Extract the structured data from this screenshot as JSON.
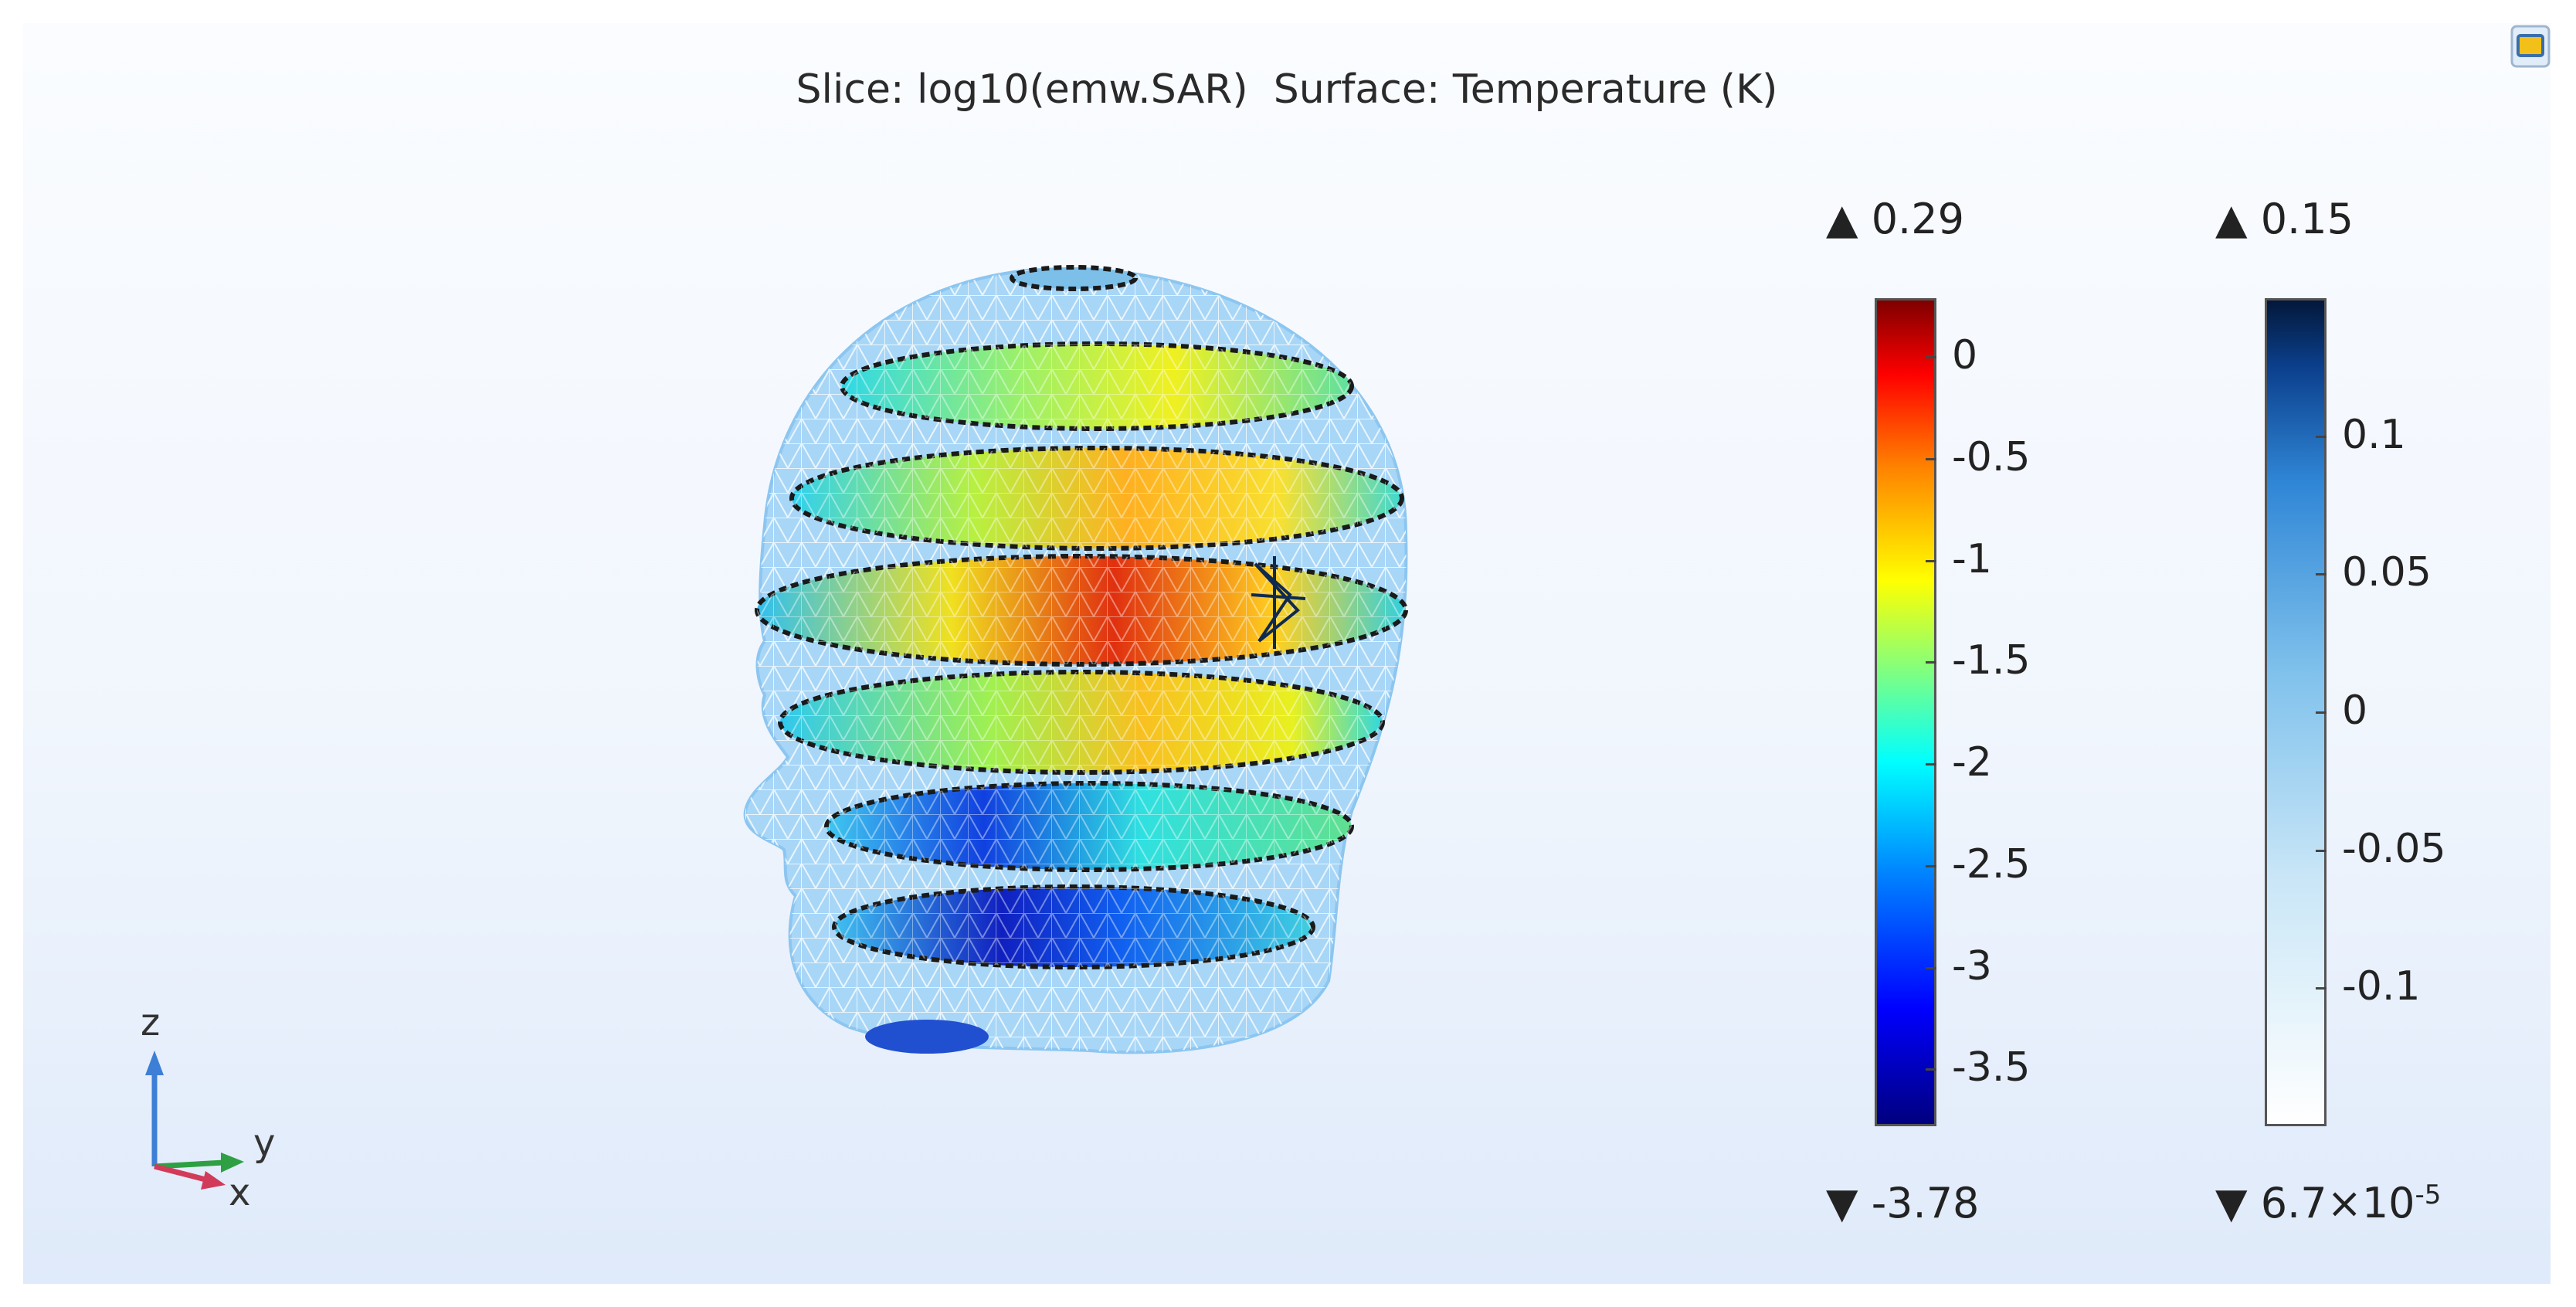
{
  "title": "Slice: log10(emw.SAR)  Surface: Temperature (K)",
  "colorbars": [
    {
      "name": "sar",
      "max_label": "▲ 0.29",
      "min_label": "▼ -3.78",
      "ticks": [
        "0",
        "-0.5",
        "-1",
        "-1.5",
        "-2",
        "-2.5",
        "-3",
        "-3.5"
      ],
      "colormap": "rainbow"
    },
    {
      "name": "temperature",
      "max_label": "▲ 0.15",
      "min_label": "▼ 6.7×10",
      "min_exp": "-5",
      "ticks": [
        "0.1",
        "0.05",
        "0",
        "-0.05",
        "-0.1"
      ],
      "colormap": "white-to-dark-blue"
    }
  ],
  "axes": {
    "z": "z",
    "y": "y",
    "x": "x",
    "z_color": "#3d7fd6",
    "y_color": "#2ea043",
    "x_color": "#d23a5a"
  },
  "icons": {
    "corner": "camera-view-icon"
  }
}
